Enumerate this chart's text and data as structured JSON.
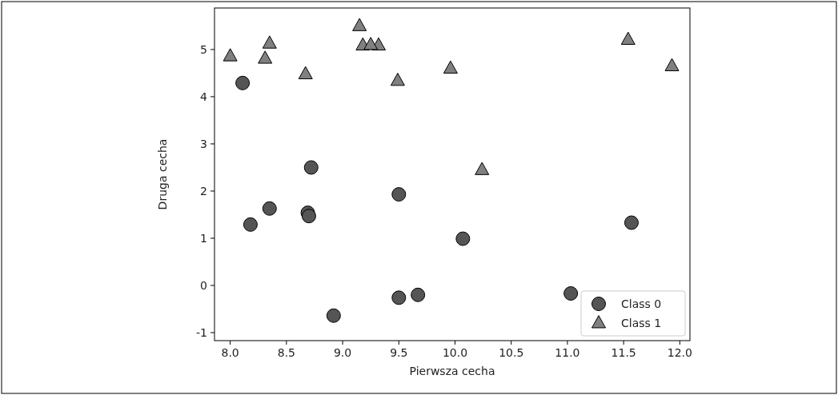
{
  "chart_data": {
    "type": "scatter",
    "xlabel": "Pierwsza cecha",
    "ylabel": "Druga cecha",
    "xlim": [
      7.86,
      12.09
    ],
    "ylim": [
      -1.17,
      5.88
    ],
    "xticks": [
      {
        "value": 8,
        "label": "8.0"
      },
      {
        "value": 8.5,
        "label": "8.5"
      },
      {
        "value": 9,
        "label": "9.0"
      },
      {
        "value": 9.5,
        "label": "9.5"
      },
      {
        "value": 10,
        "label": "10.0"
      },
      {
        "value": 10.5,
        "label": "10.5"
      },
      {
        "value": 11,
        "label": "11.0"
      },
      {
        "value": 11.5,
        "label": "11.5"
      },
      {
        "value": 12,
        "label": "12.0"
      }
    ],
    "yticks": [
      -1,
      0,
      1,
      2,
      3,
      4,
      5
    ],
    "legend": "bottom right",
    "grid": false,
    "series": [
      {
        "name": "Class 0",
        "color": "#555555",
        "marker": "circle",
        "x": [
          11.03,
          8.69,
          8.11,
          9.67,
          9.5,
          8.35,
          8.92,
          11.57,
          8.18,
          10.07,
          8.7,
          8.72,
          9.5
        ],
        "values": [
          -0.17,
          1.54,
          4.29,
          -0.2,
          1.93,
          1.63,
          -0.64,
          1.33,
          1.29,
          0.99,
          1.47,
          2.5,
          -0.26
        ]
      },
      {
        "name": "Class 1",
        "color": "#808080",
        "marker": "triangle",
        "x": [
          9.96,
          11.54,
          8.31,
          11.93,
          8.35,
          8.67,
          9.18,
          9.49,
          9.15,
          9.32,
          9.25,
          10.24,
          8.0
        ],
        "values": [
          4.6,
          5.21,
          4.81,
          4.65,
          5.13,
          4.48,
          5.09,
          4.34,
          5.5,
          5.09,
          5.1,
          2.45,
          4.86
        ]
      }
    ]
  }
}
